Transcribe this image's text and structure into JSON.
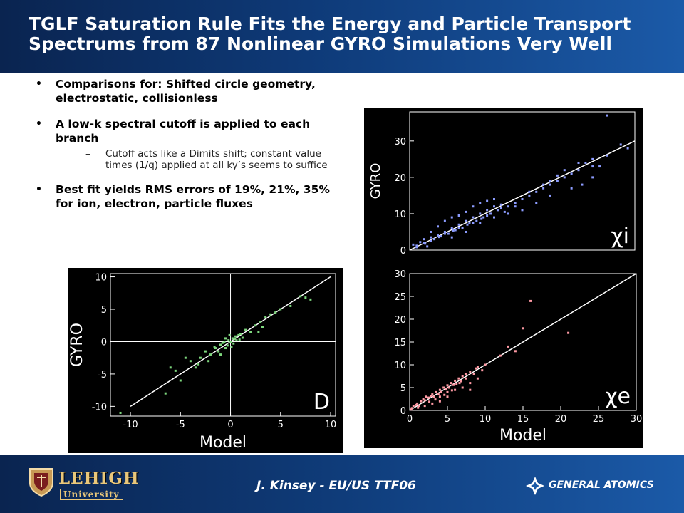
{
  "slide": {
    "title_line1": "TGLF Saturation Rule Fits the Energy and Particle Transport",
    "title_line2": "Spectrums from 87 Nonlinear GYRO Simulations Very Well"
  },
  "bullets": [
    {
      "text": "Comparisons for: Shifted circle geometry, electrostatic, collisionless"
    },
    {
      "text": "A low-k spectral cutoff is applied to each branch",
      "sub": "Cutoff acts like a Dimits shift; constant value times (1/q) applied at all ky’s seems to suffice"
    },
    {
      "text": "Best fit yields RMS errors of 19%, 21%, 35% for ion, electron, particle fluxes"
    }
  ],
  "footer": {
    "author": "J. Kinsey - EU/US TTF06",
    "left_logo_name": "LEHIGH",
    "left_logo_sub": "University",
    "right_logo_name": "GENERAL ATOMICS"
  },
  "colors": {
    "header_bg": "#0e3a78",
    "plot_bg": "#000000",
    "axis": "#ffffff",
    "chi_i_points": "#8c9cff",
    "chi_e_points": "#ff9aa4",
    "D_points": "#7ed87e"
  },
  "chart_data": [
    {
      "id": "chi_i",
      "type": "scatter",
      "title": "",
      "xlabel": "",
      "ylabel": "GYRO",
      "corner_label": "χi",
      "xlim": [
        0,
        32
      ],
      "ylim": [
        0,
        38
      ],
      "yticks": [
        0,
        10,
        20,
        30
      ],
      "xticks": [],
      "fit_line": [
        [
          0,
          0
        ],
        [
          32,
          30
        ]
      ],
      "points": [
        [
          0.5,
          1.5
        ],
        [
          1,
          1.2
        ],
        [
          1.5,
          2.2
        ],
        [
          2,
          2
        ],
        [
          2.5,
          1
        ],
        [
          3,
          3.5
        ],
        [
          3.5,
          3
        ],
        [
          4,
          4
        ],
        [
          4.5,
          3.8
        ],
        [
          5,
          5
        ],
        [
          5.5,
          4.5
        ],
        [
          6,
          6
        ],
        [
          6.5,
          5.5
        ],
        [
          7,
          7
        ],
        [
          7.5,
          6
        ],
        [
          8,
          8
        ],
        [
          8.5,
          7.5
        ],
        [
          9,
          9
        ],
        [
          9.5,
          8
        ],
        [
          10,
          10
        ],
        [
          10.5,
          9
        ],
        [
          11,
          11
        ],
        [
          11.5,
          10
        ],
        [
          12,
          12
        ],
        [
          12.5,
          11
        ],
        [
          13,
          12.5
        ],
        [
          13.5,
          10.5
        ],
        [
          14,
          12
        ],
        [
          15,
          13
        ],
        [
          16,
          14
        ],
        [
          17,
          15
        ],
        [
          18,
          16
        ],
        [
          19,
          17
        ],
        [
          20,
          18
        ],
        [
          21,
          19
        ],
        [
          22,
          20
        ],
        [
          23,
          21
        ],
        [
          24,
          22
        ],
        [
          25,
          24
        ],
        [
          26,
          25
        ],
        [
          27,
          23
        ],
        [
          5,
          8
        ],
        [
          6,
          9
        ],
        [
          7,
          9.5
        ],
        [
          8,
          10.5
        ],
        [
          9,
          12
        ],
        [
          10,
          13
        ],
        [
          11,
          13.5
        ],
        [
          12,
          14
        ],
        [
          4,
          6.5
        ],
        [
          3,
          5
        ],
        [
          2,
          3
        ],
        [
          6,
          3.5
        ],
        [
          8,
          5
        ],
        [
          10,
          7.5
        ],
        [
          12,
          9
        ],
        [
          14,
          10
        ],
        [
          16,
          11
        ],
        [
          18,
          13
        ],
        [
          20,
          15
        ],
        [
          23,
          17
        ],
        [
          24.5,
          18
        ],
        [
          26,
          20
        ],
        [
          20,
          19
        ],
        [
          22,
          22
        ],
        [
          24,
          24
        ],
        [
          26,
          23
        ],
        [
          28,
          26
        ],
        [
          30,
          29
        ],
        [
          31,
          28
        ],
        [
          17,
          16
        ],
        [
          19,
          18
        ],
        [
          21,
          20.5
        ],
        [
          15,
          12
        ],
        [
          13,
          11.5
        ],
        [
          11,
          9.5
        ],
        [
          9,
          7.5
        ],
        [
          7,
          6
        ],
        [
          5,
          4.5
        ],
        [
          3,
          2.5
        ],
        [
          1,
          0.8
        ],
        [
          2.2,
          1.8
        ],
        [
          4.2,
          3.6
        ],
        [
          6.2,
          5.4
        ],
        [
          8.2,
          7
        ],
        [
          10.2,
          8.6
        ],
        [
          28,
          37
        ]
      ]
    },
    {
      "id": "chi_e",
      "type": "scatter",
      "title": "",
      "xlabel": "Model",
      "ylabel": "",
      "corner_label": "χe",
      "xlim": [
        0,
        30
      ],
      "ylim": [
        0,
        30
      ],
      "xticks": [
        0,
        5,
        10,
        15,
        20,
        25,
        30
      ],
      "yticks": [
        0,
        5,
        10,
        15,
        20,
        25,
        30
      ],
      "fit_line": [
        [
          0,
          0
        ],
        [
          30,
          30
        ]
      ],
      "points": [
        [
          0.3,
          0.5
        ],
        [
          0.5,
          1
        ],
        [
          0.8,
          1.2
        ],
        [
          1,
          1.5
        ],
        [
          1.2,
          1
        ],
        [
          1.5,
          2
        ],
        [
          1.8,
          2.5
        ],
        [
          2,
          2.2
        ],
        [
          2.2,
          3
        ],
        [
          2.5,
          2.8
        ],
        [
          2.8,
          3.2
        ],
        [
          3,
          3.5
        ],
        [
          3.2,
          3
        ],
        [
          3.5,
          4
        ],
        [
          3.8,
          3.6
        ],
        [
          4,
          4.5
        ],
        [
          4.2,
          4
        ],
        [
          4.5,
          5
        ],
        [
          4.8,
          4.6
        ],
        [
          5,
          5.5
        ],
        [
          5.2,
          5
        ],
        [
          5.5,
          6
        ],
        [
          5.8,
          5.6
        ],
        [
          6,
          6.5
        ],
        [
          6.2,
          5.8
        ],
        [
          6.5,
          7
        ],
        [
          6.8,
          6.4
        ],
        [
          7,
          7.5
        ],
        [
          7.5,
          7
        ],
        [
          8,
          8.5
        ],
        [
          8.5,
          8
        ],
        [
          9,
          9.5
        ],
        [
          4,
          3
        ],
        [
          5,
          4
        ],
        [
          6,
          4.5
        ],
        [
          7,
          5
        ],
        [
          8,
          6
        ],
        [
          9,
          7
        ],
        [
          4,
          2
        ],
        [
          5,
          3
        ],
        [
          2,
          1
        ],
        [
          3,
          1.5
        ],
        [
          8,
          4.5
        ],
        [
          10,
          10
        ],
        [
          12,
          12
        ],
        [
          13,
          14
        ],
        [
          14,
          13
        ],
        [
          15,
          18
        ],
        [
          16,
          24
        ],
        [
          21,
          17
        ],
        [
          0.2,
          0.2
        ],
        [
          1.1,
          0.6
        ],
        [
          2.6,
          1.9
        ],
        [
          3.4,
          2.4
        ],
        [
          4.6,
          3.4
        ],
        [
          5.6,
          4.4
        ],
        [
          6.6,
          6
        ],
        [
          7.4,
          8
        ],
        [
          8.8,
          9.2
        ],
        [
          9.6,
          8.8
        ]
      ]
    },
    {
      "id": "D",
      "type": "scatter",
      "title": "",
      "xlabel": "Model",
      "ylabel": "GYRO",
      "corner_label": "D",
      "xlim": [
        -12,
        10.5
      ],
      "ylim": [
        -11.5,
        10.5
      ],
      "xticks": [
        -10,
        -5,
        0,
        5,
        10
      ],
      "yticks": [
        -10,
        -5,
        0,
        5,
        10
      ],
      "fit_line": [
        [
          -10,
          -10
        ],
        [
          10,
          10
        ]
      ],
      "points": [
        [
          -6,
          -4
        ],
        [
          -5.5,
          -4.5
        ],
        [
          -4,
          -3
        ],
        [
          -3.5,
          -4
        ],
        [
          -3,
          -2.5
        ],
        [
          -2.5,
          -1.5
        ],
        [
          -2,
          -2
        ],
        [
          -1.5,
          -1
        ],
        [
          -1,
          -0.5
        ],
        [
          -0.5,
          -1
        ],
        [
          -0.2,
          0.2
        ],
        [
          0,
          0
        ],
        [
          0.2,
          0.5
        ],
        [
          0.5,
          0.8
        ],
        [
          0.8,
          1
        ],
        [
          1,
          1.2
        ],
        [
          1.5,
          1.8
        ],
        [
          2,
          1.5
        ],
        [
          2.5,
          2.5
        ],
        [
          3,
          3
        ],
        [
          3.5,
          3.8
        ],
        [
          4,
          4.2
        ],
        [
          4.5,
          4.5
        ],
        [
          5,
          5
        ],
        [
          6,
          5.5
        ],
        [
          7,
          7
        ],
        [
          8,
          6.5
        ],
        [
          7.5,
          6.8
        ],
        [
          -1,
          -2
        ],
        [
          -0.5,
          0.5
        ],
        [
          0.3,
          -0.3
        ],
        [
          -0.3,
          -0.6
        ],
        [
          0.6,
          0.2
        ],
        [
          -0.8,
          -0.2
        ],
        [
          1.2,
          0.6
        ],
        [
          -1.2,
          -1.5
        ],
        [
          -2.2,
          -3
        ],
        [
          -3.2,
          -3.5
        ],
        [
          -4.5,
          -2.5
        ],
        [
          -5,
          -6
        ],
        [
          -6.5,
          -8
        ],
        [
          -11,
          -11
        ],
        [
          2.8,
          1.5
        ],
        [
          3.2,
          2.2
        ],
        [
          -0.1,
          1
        ],
        [
          0.1,
          -0.8
        ],
        [
          -0.6,
          -0.1
        ],
        [
          0.4,
          0.4
        ],
        [
          0.9,
          0.3
        ],
        [
          -1.6,
          -0.8
        ]
      ]
    }
  ]
}
